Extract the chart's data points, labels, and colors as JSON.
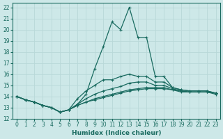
{
  "xlabel": "Humidex (Indice chaleur)",
  "xlim": [
    -0.5,
    23.5
  ],
  "ylim": [
    12,
    22.4
  ],
  "yticks": [
    12,
    13,
    14,
    15,
    16,
    17,
    18,
    19,
    20,
    21,
    22
  ],
  "xticks": [
    0,
    1,
    2,
    3,
    4,
    5,
    6,
    7,
    8,
    9,
    10,
    11,
    12,
    13,
    14,
    15,
    16,
    17,
    18,
    19,
    20,
    21,
    22,
    23
  ],
  "bg_color": "#cde8e8",
  "grid_color": "#b8d8d8",
  "line_color": "#1a6b60",
  "lines": [
    {
      "x": [
        0,
        1,
        2,
        3,
        4,
        5,
        6,
        7,
        8,
        9,
        10,
        11,
        12,
        13,
        14,
        15,
        16,
        17,
        18,
        19,
        20,
        21,
        22,
        23
      ],
      "y": [
        14.0,
        13.7,
        13.5,
        13.2,
        13.0,
        12.6,
        12.8,
        13.3,
        14.2,
        16.5,
        18.5,
        20.7,
        20.0,
        22.0,
        19.3,
        19.3,
        15.8,
        15.8,
        14.8,
        14.6,
        14.5,
        14.5,
        14.5,
        14.3
      ]
    },
    {
      "x": [
        0,
        1,
        2,
        3,
        4,
        5,
        6,
        7,
        8,
        9,
        10,
        11,
        12,
        13,
        14,
        15,
        16,
        17,
        18,
        19,
        20,
        21,
        22,
        23
      ],
      "y": [
        14.0,
        13.7,
        13.5,
        13.2,
        13.0,
        12.6,
        12.8,
        13.8,
        14.5,
        15.0,
        15.5,
        15.5,
        15.8,
        16.0,
        15.8,
        15.8,
        15.3,
        15.3,
        14.8,
        14.6,
        14.5,
        14.5,
        14.5,
        14.3
      ]
    },
    {
      "x": [
        0,
        1,
        2,
        3,
        4,
        5,
        6,
        7,
        8,
        9,
        10,
        11,
        12,
        13,
        14,
        15,
        16,
        17,
        18,
        19,
        20,
        21,
        22,
        23
      ],
      "y": [
        14.0,
        13.7,
        13.5,
        13.2,
        13.0,
        12.6,
        12.8,
        13.3,
        13.8,
        14.2,
        14.5,
        14.7,
        14.9,
        15.2,
        15.3,
        15.3,
        15.0,
        15.0,
        14.7,
        14.5,
        14.4,
        14.4,
        14.4,
        14.3
      ]
    },
    {
      "x": [
        0,
        1,
        2,
        3,
        4,
        5,
        6,
        7,
        8,
        9,
        10,
        11,
        12,
        13,
        14,
        15,
        16,
        17,
        18,
        19,
        20,
        21,
        22,
        23
      ],
      "y": [
        14.0,
        13.7,
        13.5,
        13.2,
        13.0,
        12.6,
        12.8,
        13.2,
        13.5,
        13.8,
        14.0,
        14.2,
        14.4,
        14.6,
        14.7,
        14.8,
        14.8,
        14.8,
        14.6,
        14.5,
        14.4,
        14.4,
        14.4,
        14.3
      ]
    },
    {
      "x": [
        0,
        1,
        2,
        3,
        4,
        5,
        6,
        7,
        8,
        9,
        10,
        11,
        12,
        13,
        14,
        15,
        16,
        17,
        18,
        19,
        20,
        21,
        22,
        23
      ],
      "y": [
        14.0,
        13.7,
        13.5,
        13.2,
        13.0,
        12.6,
        12.8,
        13.2,
        13.5,
        13.7,
        13.9,
        14.1,
        14.3,
        14.5,
        14.6,
        14.7,
        14.7,
        14.7,
        14.6,
        14.4,
        14.4,
        14.4,
        14.4,
        14.2
      ]
    }
  ],
  "marker": "+",
  "markersize": 3.5,
  "linewidth": 0.9,
  "label_fontsize": 6.5,
  "tick_fontsize": 5.5
}
